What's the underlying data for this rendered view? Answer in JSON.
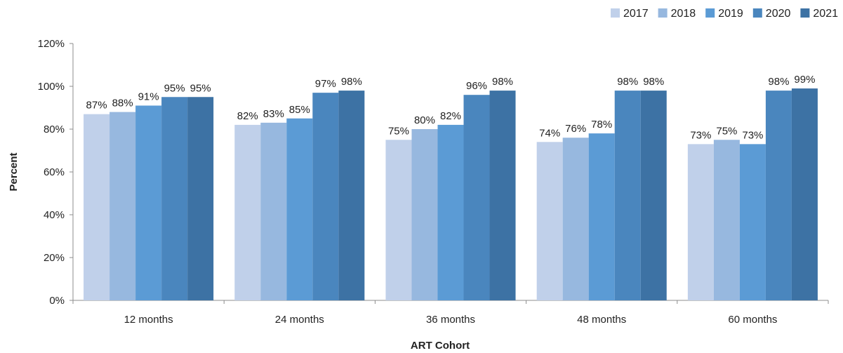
{
  "chart_data": {
    "type": "bar",
    "title": "",
    "xlabel": "ART Cohort",
    "ylabel": "Percent",
    "categories": [
      "12 months",
      "24 months",
      "36 months",
      "48 months",
      "60 months"
    ],
    "ylim": [
      0,
      120
    ],
    "yticks": [
      0,
      20,
      40,
      60,
      80,
      100,
      120
    ],
    "ytick_labels": [
      "0%",
      "20%",
      "40%",
      "60%",
      "80%",
      "100%",
      "120%"
    ],
    "grid": false,
    "legend_position": "top-right",
    "series": [
      {
        "name": "2017",
        "color": "#c0d0ea",
        "values": [
          87,
          82,
          75,
          74,
          73
        ],
        "labels": [
          "87%",
          "82%",
          "75%",
          "74%",
          "73%"
        ]
      },
      {
        "name": "2018",
        "color": "#97b8df",
        "values": [
          88,
          83,
          80,
          76,
          75
        ],
        "labels": [
          "88%",
          "83%",
          "80%",
          "76%",
          "75%"
        ]
      },
      {
        "name": "2019",
        "color": "#5b9bd5",
        "values": [
          91,
          85,
          82,
          78,
          73
        ],
        "labels": [
          "91%",
          "85%",
          "82%",
          "78%",
          "73%"
        ]
      },
      {
        "name": "2020",
        "color": "#4a86be",
        "values": [
          95,
          97,
          96,
          98,
          98
        ],
        "labels": [
          "95%",
          "97%",
          "96%",
          "98%",
          "98%"
        ]
      },
      {
        "name": "2021",
        "color": "#3d72a4",
        "values": [
          95,
          98,
          98,
          98,
          99
        ],
        "labels": [
          "95%",
          "98%",
          "98%",
          "98%",
          "99%"
        ]
      }
    ]
  }
}
